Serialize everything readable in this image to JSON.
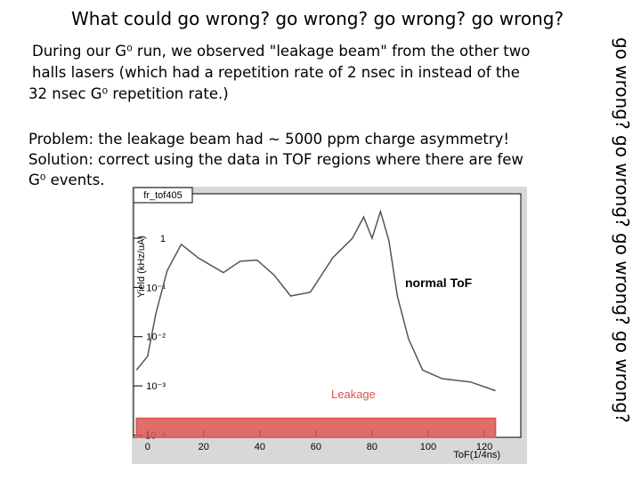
{
  "slide": {
    "title": "What could go wrong?  go wrong?  go wrong? go wrong?",
    "side_text": "go wrong? go wrong? go wrong? go wrong?",
    "paragraph1": [
      "During our G⁰ run, we observed \"leakage beam\" from the other two",
      "halls lasers (which had a repetition rate of 2 nsec in instead of the",
      "32 nsec G⁰ repetition rate.)"
    ],
    "paragraph2": [
      "Problem: the leakage beam had ~ 5000 ppm charge asymmetry!",
      "Solution: correct using the data in TOF regions where there are few",
      "G⁰ events."
    ]
  },
  "chart_data": {
    "type": "line",
    "title": "fr_tof405",
    "x_label": "ToF(1/4ns)",
    "y_label": "Yield (kHz/uA)",
    "log_y": true,
    "x": [
      -4,
      0,
      3,
      7,
      12,
      18,
      27,
      33,
      39,
      45,
      51,
      58,
      66,
      73,
      77,
      80,
      83,
      86,
      89,
      93,
      98,
      105,
      115,
      124
    ],
    "series": [
      {
        "name": "normal ToF",
        "color": "#555555",
        "values": [
          0.0021,
          0.004,
          0.03,
          0.22,
          0.75,
          0.4,
          0.2,
          0.34,
          0.36,
          0.18,
          0.067,
          0.08,
          0.4,
          1.0,
          2.7,
          1.0,
          3.5,
          0.9,
          0.067,
          0.009,
          0.0021,
          0.0014,
          0.0012,
          0.0008
        ]
      },
      {
        "name": "Leakage",
        "color": "#d9534f",
        "values": [
          0.00022,
          0.00022,
          0.00022,
          0.00022,
          0.00022,
          0.00022,
          0.00022,
          0.00022,
          0.00022,
          0.00022,
          0.00022,
          0.00022,
          0.00022,
          0.00022,
          0.00022,
          0.00022,
          0.00022,
          0.00022,
          0.00022,
          0.00022,
          0.00022,
          0.00022,
          0.00022,
          0.00022
        ]
      }
    ],
    "xlim": [
      -5,
      133
    ],
    "xticks": [
      0,
      20,
      40,
      60,
      80,
      100,
      120
    ],
    "ylim": [
      9e-05,
      8
    ],
    "yticks": [
      {
        "value": 0.0001,
        "label": "10⁻⁴"
      },
      {
        "value": 0.001,
        "label": "10⁻³"
      },
      {
        "value": 0.01,
        "label": "10⁻²"
      },
      {
        "value": 0.1,
        "label": "10⁻¹"
      },
      1
    ]
  }
}
